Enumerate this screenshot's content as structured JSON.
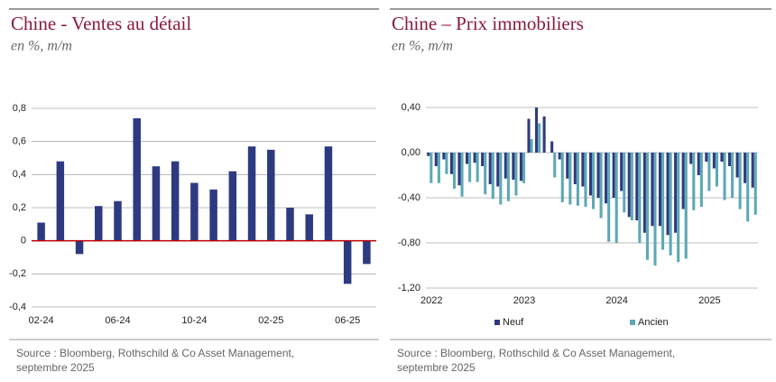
{
  "chart_data": [
    {
      "type": "bar",
      "title": "Chine - Ventes au détail",
      "subtitle": "en %, m/m",
      "categories": [
        "02-24",
        null,
        null,
        null,
        "06-24",
        null,
        null,
        null,
        "10-24",
        null,
        null,
        null,
        "02-25",
        null,
        null,
        null,
        "06-25",
        null
      ],
      "values": [
        0.11,
        0.48,
        -0.08,
        0.21,
        0.24,
        0.74,
        0.45,
        0.48,
        0.35,
        0.31,
        0.42,
        0.57,
        0.55,
        0.2,
        0.16,
        0.57,
        -0.26,
        -0.14
      ],
      "color": "#2e3a80",
      "zero_line": "#c00000",
      "grid": true,
      "ylim": [
        -0.4,
        0.8
      ],
      "yticks": [
        {
          "value": -0.4,
          "label": "-0,4"
        },
        {
          "value": -0.2,
          "label": "-0,2"
        },
        0,
        {
          "value": 0.2,
          "label": "0,2"
        },
        {
          "value": 0.4,
          "label": "0,4"
        },
        {
          "value": 0.6,
          "label": "0,6"
        },
        {
          "value": 0.8,
          "label": "0,8"
        }
      ],
      "source": "Source : Bloomberg, Rothschild & Co Asset Management, septembre 2025"
    },
    {
      "type": "bar",
      "title": "Chine – Prix immobiliers",
      "subtitle": "en %, m/m",
      "categories": [
        "2022",
        null,
        null,
        null,
        null,
        null,
        null,
        null,
        null,
        null,
        null,
        null,
        "2023",
        null,
        null,
        null,
        null,
        null,
        null,
        null,
        null,
        null,
        null,
        null,
        "2024",
        null,
        null,
        null,
        null,
        null,
        null,
        null,
        null,
        null,
        null,
        null,
        "2025",
        null,
        null,
        null,
        null,
        null,
        null
      ],
      "series": [
        {
          "name": "Neuf",
          "color": "#2e3a80",
          "values": [
            -0.03,
            -0.12,
            -0.06,
            -0.19,
            -0.29,
            -0.1,
            -0.09,
            -0.12,
            -0.28,
            -0.3,
            -0.23,
            -0.24,
            -0.25,
            0.3,
            0.4,
            0.32,
            0.1,
            -0.06,
            -0.23,
            -0.28,
            -0.3,
            -0.38,
            -0.4,
            -0.45,
            -0.4,
            -0.34,
            -0.57,
            -0.6,
            -0.71,
            -0.65,
            -0.65,
            -0.73,
            -0.71,
            -0.5,
            -0.1,
            -0.2,
            -0.08,
            -0.14,
            -0.08,
            -0.12,
            -0.22,
            -0.27,
            -0.31
          ]
        },
        {
          "name": "Ancien",
          "color": "#5fa8b5",
          "values": [
            -0.27,
            -0.27,
            -0.19,
            -0.32,
            -0.39,
            -0.26,
            -0.26,
            -0.37,
            -0.41,
            -0.46,
            -0.43,
            -0.38,
            -0.27,
            0.12,
            0.26,
            0.0,
            -0.22,
            -0.44,
            -0.46,
            -0.47,
            -0.48,
            -0.5,
            -0.58,
            -0.79,
            -0.8,
            -0.53,
            -0.6,
            -0.8,
            -0.95,
            -1.0,
            -0.86,
            -0.91,
            -0.97,
            -0.94,
            -0.51,
            -0.48,
            -0.34,
            -0.3,
            -0.42,
            -0.4,
            -0.5,
            -0.61,
            -0.55
          ]
        }
      ],
      "grid": true,
      "legend": "bottom",
      "ylim": [
        -1.2,
        0.4
      ],
      "yticks": [
        {
          "value": -1.2,
          "label": "-1,20"
        },
        {
          "value": -0.8,
          "label": "-0,80"
        },
        {
          "value": -0.4,
          "label": "-0,40"
        },
        {
          "value": 0,
          "label": "0,00"
        },
        {
          "value": 0.4,
          "label": "0,40"
        }
      ],
      "source": "Source : Bloomberg, Rothschild & Co Asset Management, septembre 2025"
    }
  ]
}
